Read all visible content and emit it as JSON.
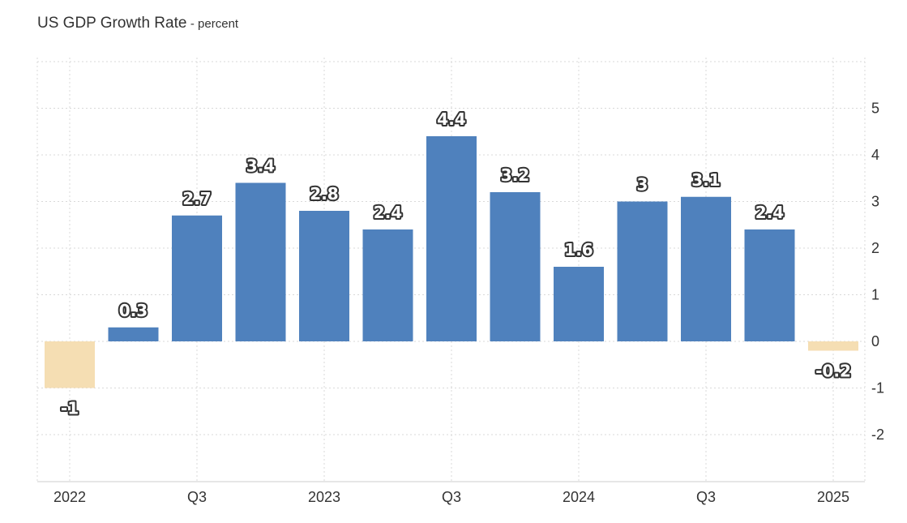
{
  "header": {
    "title": "US GDP Growth Rate",
    "subtitle": "- percent"
  },
  "colors": {
    "positive": "#4f81bd",
    "negative": "#f5deb3",
    "grid": "#d9d9d9",
    "text": "#333333"
  },
  "chart_data": {
    "type": "bar",
    "title": "US GDP Growth Rate",
    "subtitle": "percent",
    "categories": [
      "2022 Q1",
      "2022 Q2",
      "2022 Q3",
      "2022 Q4",
      "2023 Q1",
      "2023 Q2",
      "2023 Q3",
      "2023 Q4",
      "2024 Q1",
      "2024 Q2",
      "2024 Q3",
      "2024 Q4",
      "2025 Q1"
    ],
    "values": [
      -1,
      0.3,
      2.7,
      3.4,
      2.8,
      2.4,
      4.4,
      3.2,
      1.6,
      3,
      3.1,
      2.4,
      -0.2
    ],
    "data_labels": [
      "-1",
      "0.3",
      "2.7",
      "3.4",
      "2.8",
      "2.4",
      "4.4",
      "3.2",
      "1.6",
      "3",
      "3.1",
      "2.4",
      "-0.2"
    ],
    "x_tick_labels": [
      "2022",
      "Q3",
      "2023",
      "Q3",
      "2024",
      "Q3",
      "2025"
    ],
    "x_tick_category_index": [
      0,
      2,
      4,
      6,
      8,
      10,
      12
    ],
    "y_tick_labels": [
      "5",
      "4",
      "3",
      "2",
      "1",
      "0",
      "-1",
      "-2"
    ],
    "y_tick_values": [
      5,
      4,
      3,
      2,
      1,
      0,
      -1,
      -2
    ],
    "ylim": [
      -3,
      6
    ],
    "xlabel": "",
    "ylabel": "",
    "grid": true,
    "y_axis_side": "right"
  }
}
